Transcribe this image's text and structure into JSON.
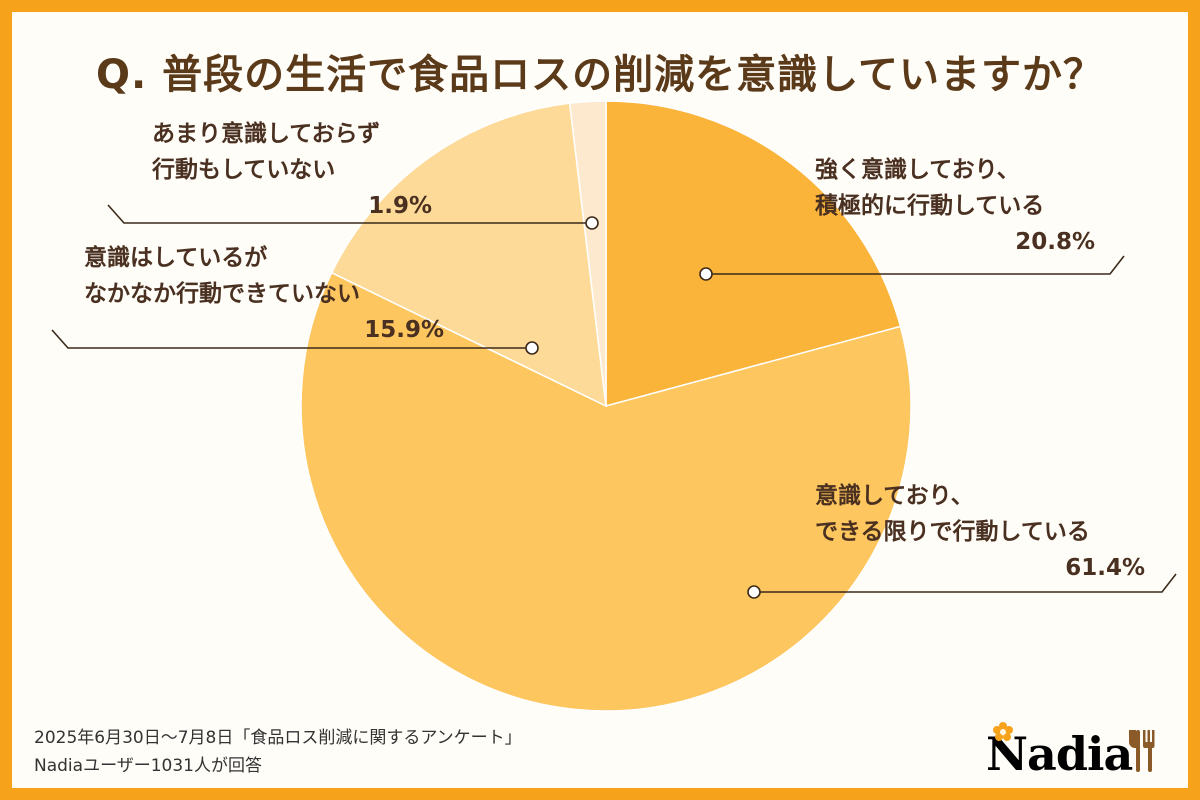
{
  "title": "Q. 普段の生活で食品ロスの削減を意識していますか？",
  "chart_data": {
    "type": "pie",
    "title": "Q. 普段の生活で食品ロスの削減を意識していますか？",
    "start": "12 o'clock, clockwise",
    "slices": [
      {
        "label_line1": "強く意識しており、",
        "label_line2": "積極的に行動している",
        "value": 20.8,
        "value_label": "20.8%",
        "color": "#fbb43a"
      },
      {
        "label_line1": "意識しており、",
        "label_line2": "できる限りで行動している",
        "value": 61.4,
        "value_label": "61.4%",
        "color": "#fdc65e"
      },
      {
        "label_line1": "意識はしているが",
        "label_line2": "なかなか行動できていない",
        "value": 15.9,
        "value_label": "15.9%",
        "color": "#fdda97"
      },
      {
        "label_line1": "あまり意識しておらず",
        "label_line2": "行動もしていない",
        "value": 1.9,
        "value_label": "1.9%",
        "color": "#fde9cd"
      }
    ]
  },
  "footer": {
    "line1": "2025年6月30日〜7月8日「食品ロス削減に関するアンケート」",
    "line2": "Nadiaユーザー1031人が回答"
  },
  "logo": {
    "text": "Nadia"
  },
  "colors": {
    "frame": "#f7a21b",
    "title": "#5b3a1a",
    "text": "#4a3020",
    "leader": "#3b2a1a"
  }
}
